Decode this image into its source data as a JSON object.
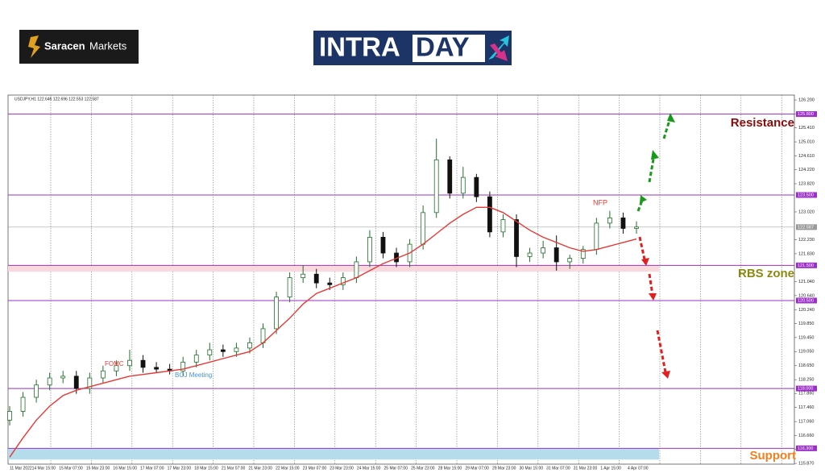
{
  "header": {
    "broker_bold": "Saracen",
    "broker_rest": "Markets",
    "banner_left": "INTRA",
    "banner_right": "DAY"
  },
  "chart_data": {
    "type": "candlestick",
    "symbol_info": "USDJPY,H1 122.646 122.696 122.553 122.587",
    "categories": [
      "11 Mar 2022",
      "14 Mar 15:00",
      "15 Mar 07:00",
      "15 Mar 23:00",
      "16 Mar 15:00",
      "17 Mar 07:00",
      "17 Mar 23:00",
      "18 Mar 15:00",
      "21 Mar 07:00",
      "21 Mar 23:00",
      "22 Mar 15:00",
      "23 Mar 07:00",
      "23 Mar 23:00",
      "24 Mar 15:00",
      "25 Mar 07:00",
      "25 Mar 23:00",
      "28 Mar 15:00",
      "29 Mar 07:00",
      "29 Mar 23:00",
      "30 Mar 15:00",
      "31 Mar 07:00",
      "31 Mar 23:00",
      "1 Apr 15:00",
      "4 Apr 07:00"
    ],
    "candles": {
      "open": [
        117.1,
        117.35,
        117.75,
        118.1,
        118.3,
        118.35,
        118.0,
        118.3,
        118.5,
        118.65,
        118.8,
        118.6,
        118.55,
        118.5,
        118.75,
        118.95,
        119.1,
        119.05,
        119.15,
        119.3,
        119.7,
        120.6,
        121.15,
        121.25,
        121.0,
        120.95,
        121.15,
        121.6,
        122.3,
        121.85,
        121.6,
        122.1,
        123.0,
        124.5,
        123.55,
        124.0,
        123.45,
        122.45,
        122.8,
        121.75,
        121.85,
        122.0,
        121.6,
        121.7,
        121.95,
        122.7,
        122.85,
        122.55
      ],
      "high": [
        117.5,
        117.9,
        118.25,
        118.45,
        118.5,
        118.5,
        118.45,
        118.65,
        118.8,
        119.1,
        118.95,
        118.75,
        118.7,
        118.9,
        119.1,
        119.3,
        119.25,
        119.3,
        119.45,
        119.85,
        120.75,
        121.3,
        121.5,
        121.4,
        121.15,
        121.3,
        121.75,
        122.5,
        122.45,
        122.0,
        122.25,
        123.2,
        125.1,
        124.6,
        124.3,
        124.1,
        123.6,
        122.95,
        122.95,
        122.0,
        122.2,
        122.35,
        121.8,
        122.05,
        122.85,
        123.05,
        123.0,
        122.75
      ],
      "low": [
        116.95,
        117.2,
        117.6,
        117.95,
        118.15,
        117.85,
        117.85,
        118.15,
        118.35,
        118.5,
        118.45,
        118.45,
        118.4,
        118.35,
        118.6,
        118.8,
        118.9,
        118.9,
        119.0,
        119.15,
        119.55,
        120.45,
        121.0,
        120.85,
        120.8,
        120.8,
        121.0,
        121.45,
        121.7,
        121.45,
        121.45,
        121.95,
        122.85,
        123.4,
        123.4,
        123.3,
        122.3,
        122.3,
        121.45,
        121.6,
        121.7,
        121.35,
        121.4,
        121.55,
        121.8,
        122.55,
        122.4,
        122.4
      ],
      "close": [
        117.35,
        117.75,
        118.1,
        118.3,
        118.35,
        118.0,
        118.3,
        118.5,
        118.65,
        118.8,
        118.6,
        118.55,
        118.5,
        118.75,
        118.95,
        119.1,
        119.05,
        119.15,
        119.3,
        119.7,
        120.6,
        121.15,
        121.25,
        121.0,
        120.95,
        121.15,
        121.6,
        122.3,
        121.85,
        121.6,
        122.1,
        123.0,
        124.5,
        123.55,
        124.0,
        123.45,
        122.45,
        122.8,
        121.75,
        121.85,
        122.0,
        121.6,
        121.7,
        121.95,
        122.7,
        122.85,
        122.55,
        122.59
      ]
    },
    "up_color": "#1f6f2a",
    "down_color": "#111111",
    "moving_average": {
      "color": "#e53935",
      "values": [
        116.05,
        116.6,
        117.1,
        117.5,
        117.8,
        117.95,
        118.05,
        118.15,
        118.25,
        118.35,
        118.4,
        118.45,
        118.5,
        118.55,
        118.65,
        118.75,
        118.85,
        118.95,
        119.05,
        119.3,
        119.65,
        120.0,
        120.4,
        120.7,
        120.85,
        121.0,
        121.15,
        121.35,
        121.55,
        121.7,
        121.85,
        122.1,
        122.4,
        122.7,
        122.95,
        123.15,
        123.15,
        123.0,
        122.75,
        122.5,
        122.3,
        122.15,
        122.0,
        121.9,
        121.95,
        122.05,
        122.15,
        122.25
      ]
    },
    "ylim": [
      115.85,
      126.34
    ],
    "yticks": [
      {
        "value": 126.2,
        "label": "126.200"
      },
      {
        "value": 125.8,
        "label": "125.800"
      },
      {
        "value": 125.41,
        "label": "125.410"
      },
      {
        "value": 125.01,
        "label": "125.010"
      },
      {
        "value": 124.61,
        "label": "124.610"
      },
      {
        "value": 124.22,
        "label": "124.220"
      },
      {
        "value": 123.82,
        "label": "123.820"
      },
      {
        "value": 123.02,
        "label": "123.020"
      },
      {
        "value": 122.23,
        "label": "122.230"
      },
      {
        "value": 121.83,
        "label": "121.830"
      },
      {
        "value": 121.04,
        "label": "121.040"
      },
      {
        "value": 120.64,
        "label": "120.640"
      },
      {
        "value": 120.24,
        "label": "120.240"
      },
      {
        "value": 119.85,
        "label": "119.850"
      },
      {
        "value": 119.45,
        "label": "119.450"
      },
      {
        "value": 119.05,
        "label": "119.050"
      },
      {
        "value": 118.65,
        "label": "118.650"
      },
      {
        "value": 118.25,
        "label": "118.250"
      },
      {
        "value": 117.86,
        "label": "117.860"
      },
      {
        "value": 117.46,
        "label": "117.460"
      },
      {
        "value": 117.06,
        "label": "117.060"
      },
      {
        "value": 116.66,
        "label": "116.660"
      },
      {
        "value": 116.27,
        "label": "116.270"
      },
      {
        "value": 115.87,
        "label": "115.870"
      }
    ],
    "levels": [
      {
        "value": 125.8,
        "label": "125.800"
      },
      {
        "value": 123.5,
        "label": "123.500"
      },
      {
        "value": 121.5,
        "label": "121.500"
      },
      {
        "value": 120.5,
        "label": "120.500"
      },
      {
        "value": 118.0,
        "label": "118.000"
      },
      {
        "value": 116.3,
        "label": "116.300"
      }
    ],
    "level_color": "#9b30c8",
    "current_price": {
      "value": 122.587,
      "label": "122.587"
    },
    "zones": [
      {
        "from": 121.32,
        "to": 121.5,
        "color": "#f9d9dd"
      },
      {
        "from": 115.98,
        "to": 116.3,
        "color": "#b5dcea"
      }
    ],
    "annotations": [
      {
        "text": "FOMC",
        "color": "#e53935"
      },
      {
        "text": "BOJ Meeting",
        "color": "#4a90d9"
      },
      {
        "text": "NFP",
        "color": "#e53935"
      }
    ],
    "zone_labels": [
      {
        "text": "Resistance",
        "color": "#8b0a0a"
      },
      {
        "text": "RBS zone",
        "color": "#8a8a10"
      },
      {
        "text": "Support",
        "color": "#f08020"
      }
    ]
  }
}
